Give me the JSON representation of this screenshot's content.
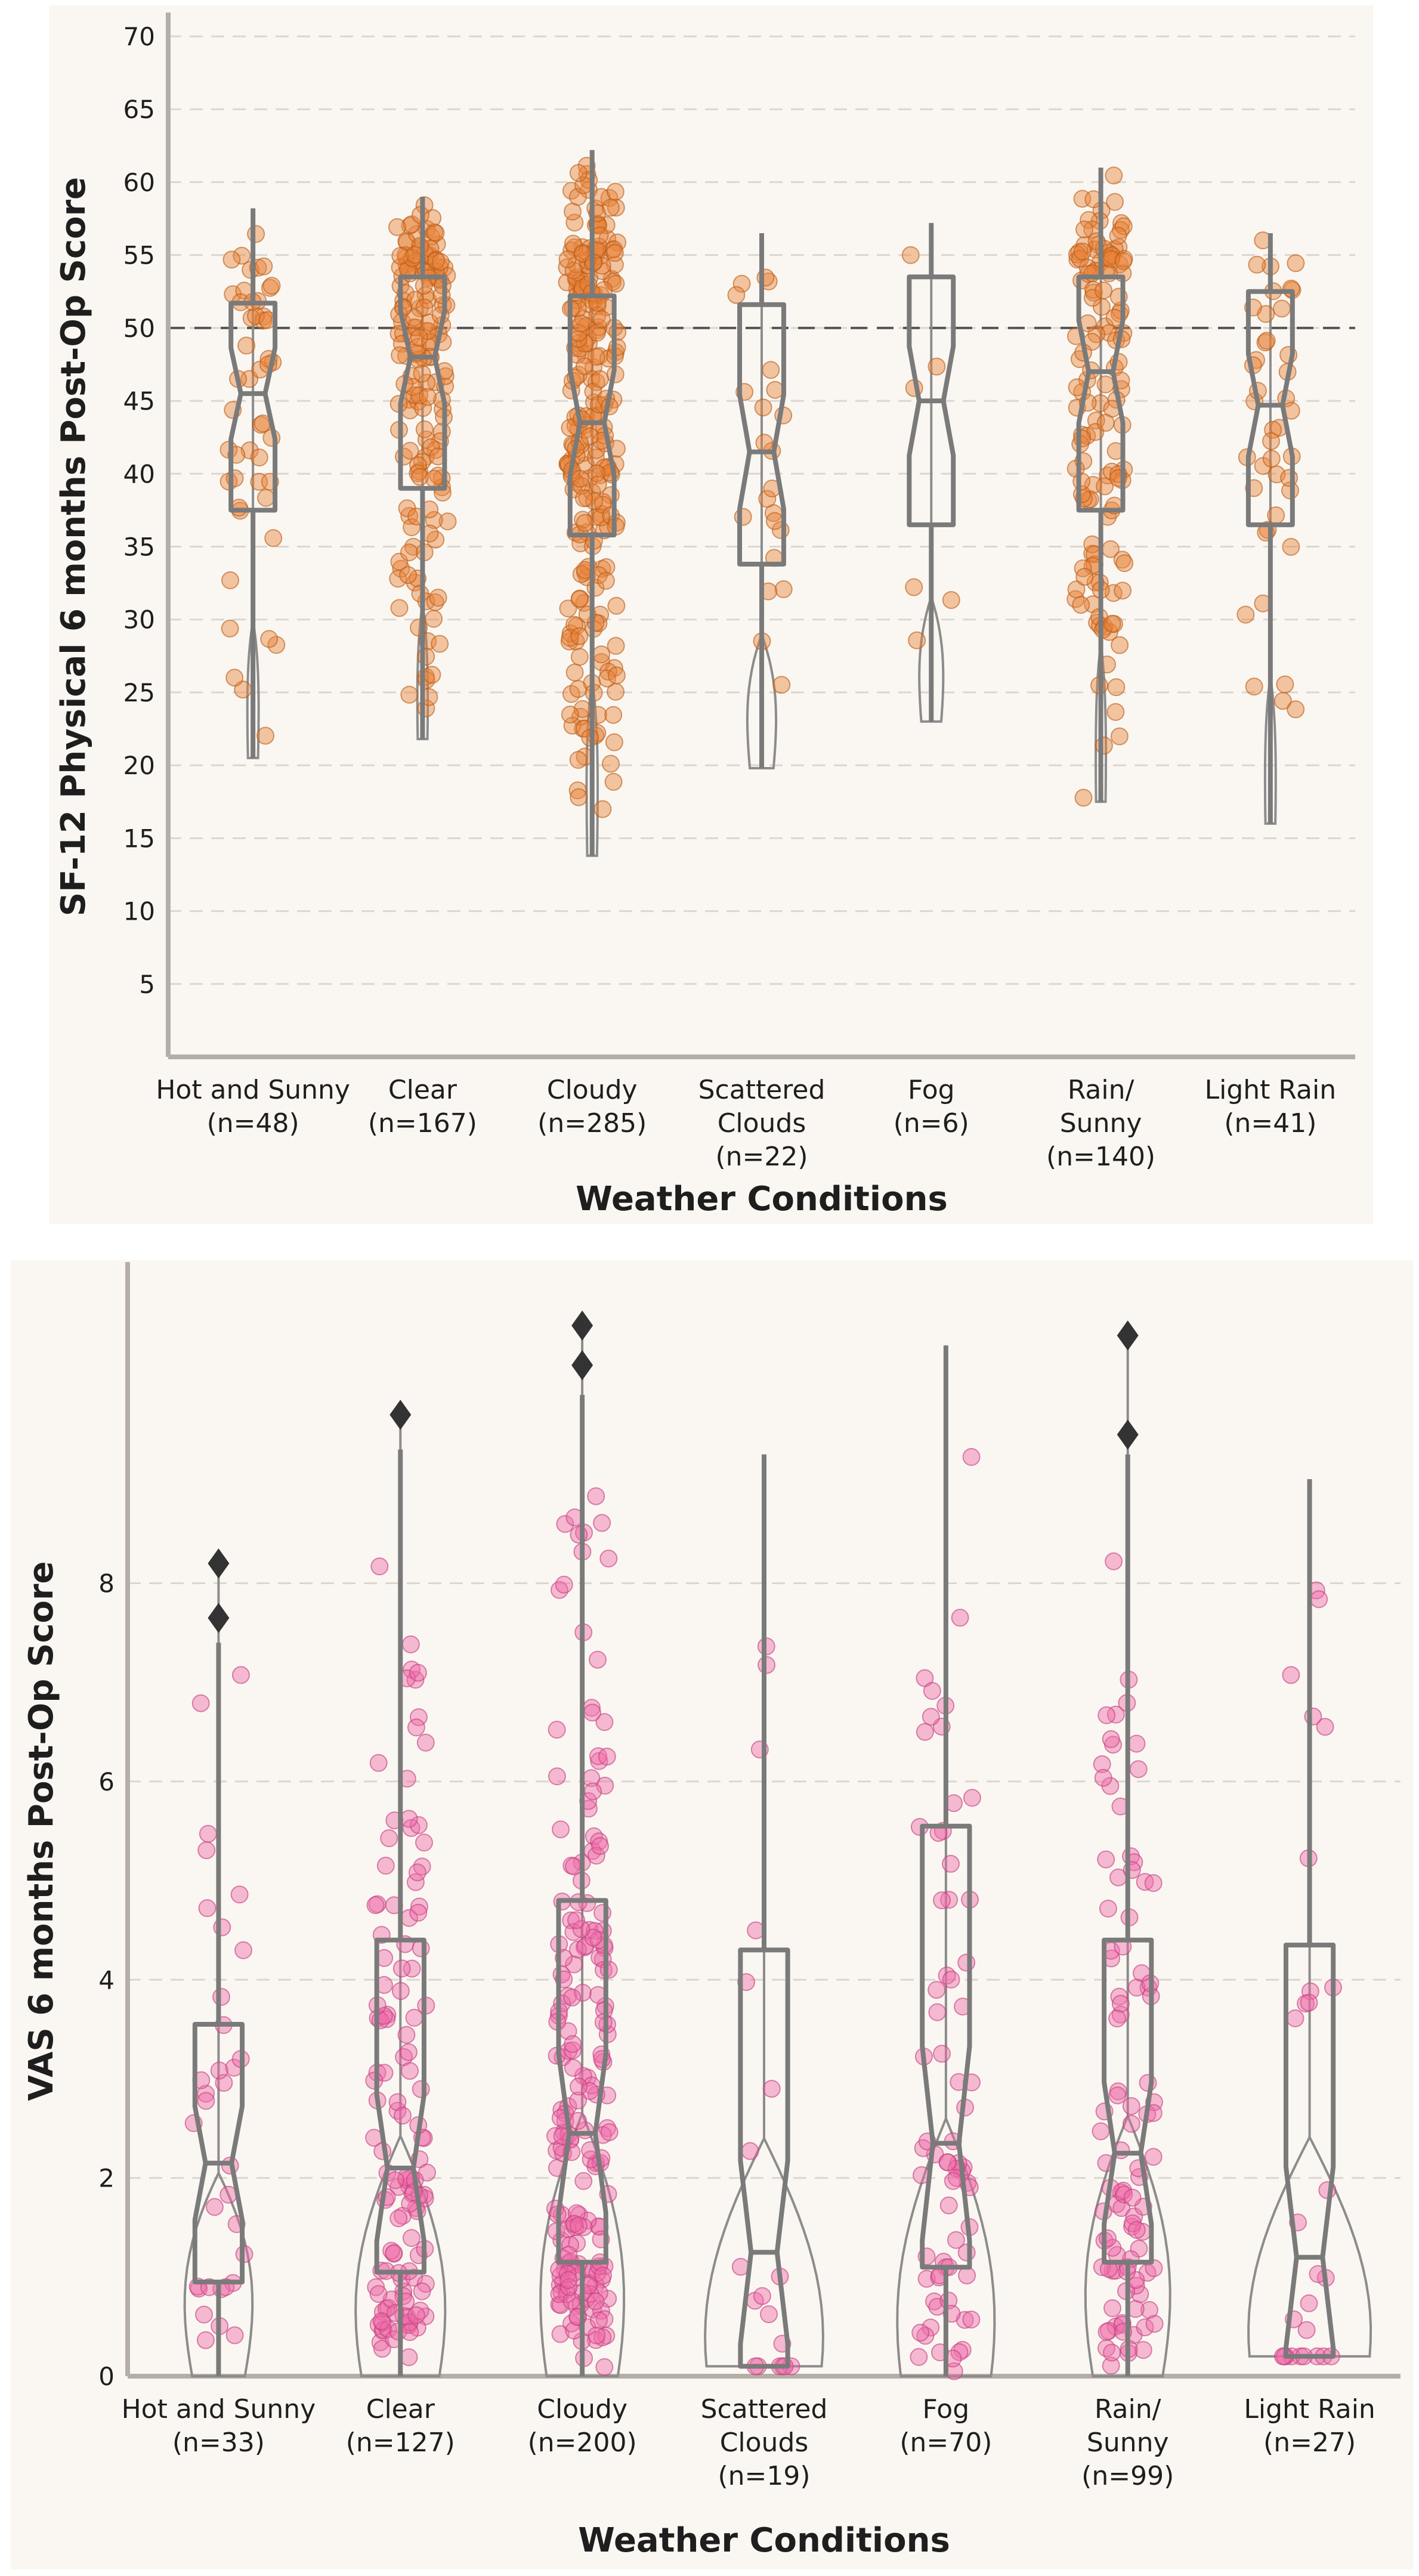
{
  "chart_data": [
    {
      "type": "violin",
      "title": "",
      "xlabel": "Weather Conditions",
      "ylabel": "SF-12 Physical 6 months Post-Op Score",
      "ylim": [
        0,
        70
      ],
      "yticks": [
        5,
        10,
        15,
        20,
        25,
        30,
        35,
        40,
        45,
        50,
        55,
        60,
        65,
        70
      ],
      "reference_line": 50,
      "point_color": "#e8823a",
      "point_edge": "#b85a14",
      "categories": [
        {
          "label": [
            "Hot and Sunny",
            "(n=48)"
          ],
          "n": 48,
          "min": 20.5,
          "q1": 37.5,
          "median": 45.5,
          "q3": 51.7,
          "max": 58.2,
          "vmin": 20.5,
          "vmax": 58.2
        },
        {
          "label": [
            "Clear",
            "(n=167)"
          ],
          "n": 167,
          "min": 21.8,
          "q1": 39.0,
          "median": 48.0,
          "q3": 53.5,
          "max": 59.0,
          "vmin": 21.8,
          "vmax": 59.0
        },
        {
          "label": [
            "Cloudy",
            "(n=285)"
          ],
          "n": 285,
          "min": 13.8,
          "q1": 35.8,
          "median": 43.5,
          "q3": 52.2,
          "max": 62.2,
          "vmin": 13.8,
          "vmax": 62.2
        },
        {
          "label": [
            "Scattered",
            "Clouds",
            "(n=22)"
          ],
          "n": 22,
          "min": 19.8,
          "q1": 33.8,
          "median": 41.5,
          "q3": 51.6,
          "max": 56.5,
          "vmin": 19.8,
          "vmax": 56.5
        },
        {
          "label": [
            "Fog",
            "(n=6)"
          ],
          "n": 6,
          "min": 23.0,
          "q1": 36.5,
          "median": 45.0,
          "q3": 53.5,
          "max": 57.2,
          "vmin": 23.0,
          "vmax": 57.2
        },
        {
          "label": [
            "Rain/",
            "Sunny",
            "(n=140)"
          ],
          "n": 140,
          "min": 17.5,
          "q1": 37.5,
          "median": 47.0,
          "q3": 53.5,
          "max": 61.0,
          "vmin": 17.5,
          "vmax": 61.0
        },
        {
          "label": [
            "Light Rain",
            "(n=41)"
          ],
          "n": 41,
          "min": 16.0,
          "q1": 36.5,
          "median": 44.7,
          "q3": 52.5,
          "max": 56.5,
          "vmin": 16.0,
          "vmax": 56.5
        }
      ]
    },
    {
      "type": "violin",
      "title": "",
      "xlabel": "Weather Conditions",
      "ylabel": "VAS 6 months Post-Op Score",
      "ylim": [
        0,
        11
      ],
      "yticks": [
        0,
        2,
        4,
        6,
        8
      ],
      "reference_line": null,
      "point_color": "#f06aa8",
      "point_edge": "#c23d7c",
      "categories": [
        {
          "label": [
            "Hot and Sunny",
            "(n=33)"
          ],
          "n": 33,
          "min": 0.0,
          "q1": 0.95,
          "median": 2.15,
          "q3": 3.55,
          "max": 7.4,
          "vmin": 0.0,
          "vmax": 8.2,
          "outliers": [
            7.65,
            8.2
          ]
        },
        {
          "label": [
            "Clear",
            "(n=127)"
          ],
          "n": 127,
          "min": 0.0,
          "q1": 1.05,
          "median": 2.1,
          "q3": 4.4,
          "max": 9.35,
          "vmin": 0.0,
          "vmax": 9.7,
          "outliers": [
            9.7
          ]
        },
        {
          "label": [
            "Cloudy",
            "(n=200)"
          ],
          "n": 200,
          "min": 0.0,
          "q1": 1.15,
          "median": 2.45,
          "q3": 4.8,
          "max": 9.9,
          "vmin": 0.0,
          "vmax": 10.6,
          "outliers": [
            10.2,
            10.6
          ]
        },
        {
          "label": [
            "Scattered",
            "Clouds",
            "(n=19)"
          ],
          "n": 19,
          "min": 0.1,
          "q1": 0.1,
          "median": 1.25,
          "q3": 4.3,
          "max": 9.3,
          "vmin": 0.1,
          "vmax": 9.3
        },
        {
          "label": [
            "Fog",
            "(n=70)"
          ],
          "n": 70,
          "min": 0.0,
          "q1": 1.1,
          "median": 2.35,
          "q3": 5.55,
          "max": 10.4,
          "vmin": 0.0,
          "vmax": 10.4
        },
        {
          "label": [
            "Rain/",
            "Sunny",
            "(n=99)"
          ],
          "n": 99,
          "min": 0.0,
          "q1": 1.15,
          "median": 2.25,
          "q3": 4.4,
          "max": 9.3,
          "vmin": 0.0,
          "vmax": 10.5,
          "outliers": [
            9.5,
            10.5
          ]
        },
        {
          "label": [
            "Light Rain",
            "(n=27)"
          ],
          "n": 27,
          "min": 0.2,
          "q1": 0.2,
          "median": 1.2,
          "q3": 4.35,
          "max": 9.05,
          "vmin": 0.2,
          "vmax": 9.05
        }
      ]
    }
  ]
}
